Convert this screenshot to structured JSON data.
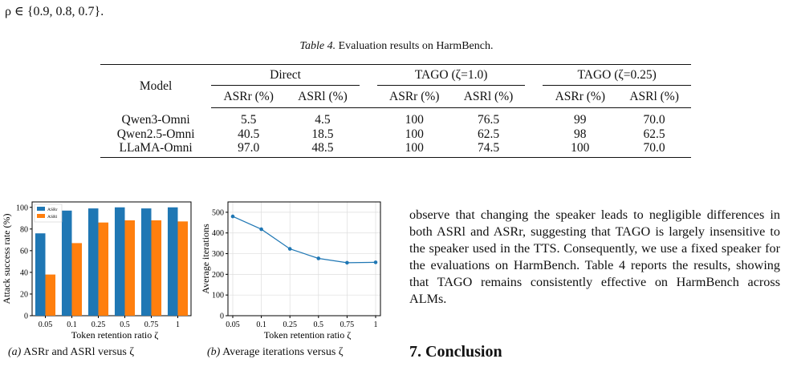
{
  "top_text": "ρ ∈ {0.9, 0.8, 0.7}.",
  "table": {
    "caption_label": "Table 4.",
    "caption_text": "Evaluation results on HarmBench.",
    "model_header": "Model",
    "groups": [
      "Direct",
      "TAGO (ζ=1.0)",
      "TAGO (ζ=0.25)"
    ],
    "subheaders": [
      "ASRr (%)",
      "ASRl (%)",
      "ASRr (%)",
      "ASRl (%)",
      "ASRr (%)",
      "ASRl (%)"
    ],
    "rows": [
      {
        "model": "Qwen3-Omni",
        "values": [
          "5.5",
          "4.5",
          "100",
          "76.5",
          "99",
          "70.0"
        ]
      },
      {
        "model": "Qwen2.5-Omni",
        "values": [
          "40.5",
          "18.5",
          "100",
          "62.5",
          "98",
          "62.5"
        ]
      },
      {
        "model": "LLaMA-Omni",
        "values": [
          "97.0",
          "48.5",
          "100",
          "74.5",
          "100",
          "70.0"
        ]
      }
    ]
  },
  "chart_data": [
    {
      "type": "bar",
      "categories": [
        "0.05",
        "0.1",
        "0.25",
        "0.5",
        "0.75",
        "1"
      ],
      "series": [
        {
          "name": "ASRr",
          "values": [
            76,
            97,
            99,
            100,
            99,
            100
          ],
          "color": "#1f77b4"
        },
        {
          "name": "ASRl",
          "values": [
            38,
            67,
            86,
            88,
            88,
            87
          ],
          "color": "#ff7f0e"
        }
      ],
      "xlabel": "Token retention ratio ζ",
      "ylabel": "Attack success rate (%)",
      "ylim": [
        0,
        105
      ],
      "yticks": [
        "0",
        "20",
        "40",
        "60",
        "80",
        "100"
      ],
      "legend": "top-left",
      "caption_label": "(a)",
      "caption_text": "ASRr and ASRl versus ζ"
    },
    {
      "type": "line",
      "x": [
        "0.05",
        "0.1",
        "0.25",
        "0.5",
        "0.75",
        "1"
      ],
      "y": [
        480,
        418,
        323,
        277,
        256,
        258
      ],
      "xlabel": "Token retention ratio ζ",
      "ylabel": "Average iterations",
      "ylim": [
        0,
        550
      ],
      "yticks": [
        "0",
        "100",
        "200",
        "300",
        "400",
        "500"
      ],
      "grid": true,
      "color": "#1f77b4",
      "caption_label": "(b)",
      "caption_text": "Average iterations versus ζ"
    }
  ],
  "paragraph": "observe that changing the speaker leads to negligible differences in both ASRl and ASRr, suggesting that TAGO is largely insensitive to the speaker used in the TTS. Consequently, we use a fixed speaker for the evaluations on HarmBench. Table 4 reports the results, showing that TAGO remains consistently effective on HarmBench across ALMs.",
  "section_heading": "7. Conclusion"
}
